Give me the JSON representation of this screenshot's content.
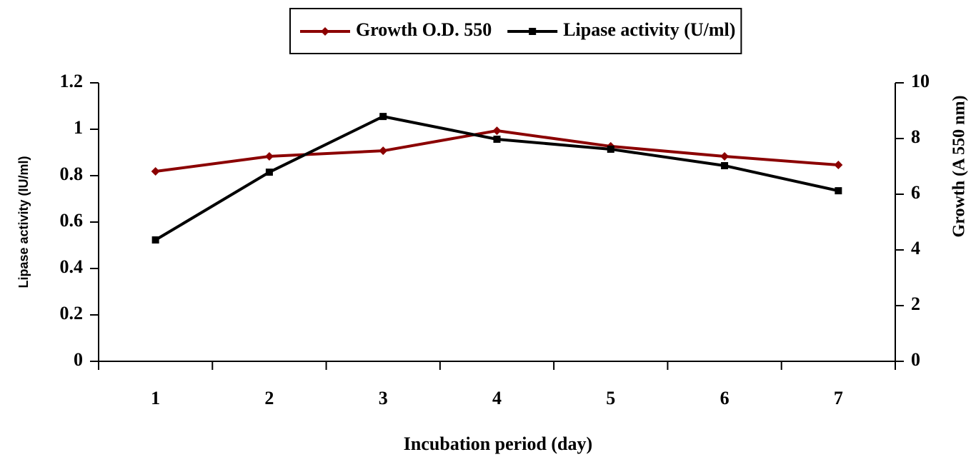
{
  "chart_data": {
    "type": "line",
    "x_label": "Incubation period (day)",
    "y_label": "Lipase activity (IU/ml)",
    "y2_label": "Growth (A 550 nm)",
    "categories": [
      "1",
      "2",
      "3",
      "4",
      "5",
      "6",
      "7"
    ],
    "series": [
      {
        "name": "Growth O.D. 550",
        "color": "#8b0000",
        "marker": "diamond",
        "axis": "y2",
        "values": [
          6.82,
          7.36,
          7.56,
          8.28,
          7.72,
          7.36,
          7.05
        ]
      },
      {
        "name": "Lipase activity (U/ml)",
        "color": "#000000",
        "marker": "square",
        "values": [
          0.523,
          0.815,
          1.055,
          0.957,
          0.914,
          0.843,
          0.735
        ]
      }
    ],
    "ylim": [
      0,
      1.2
    ],
    "yticks": [
      0,
      0.2,
      0.4,
      0.6,
      0.8,
      1,
      1.2
    ],
    "y2lim": [
      0,
      10
    ],
    "y2ticks": [
      0,
      2,
      4,
      6,
      8,
      10
    ],
    "legend": "top"
  }
}
